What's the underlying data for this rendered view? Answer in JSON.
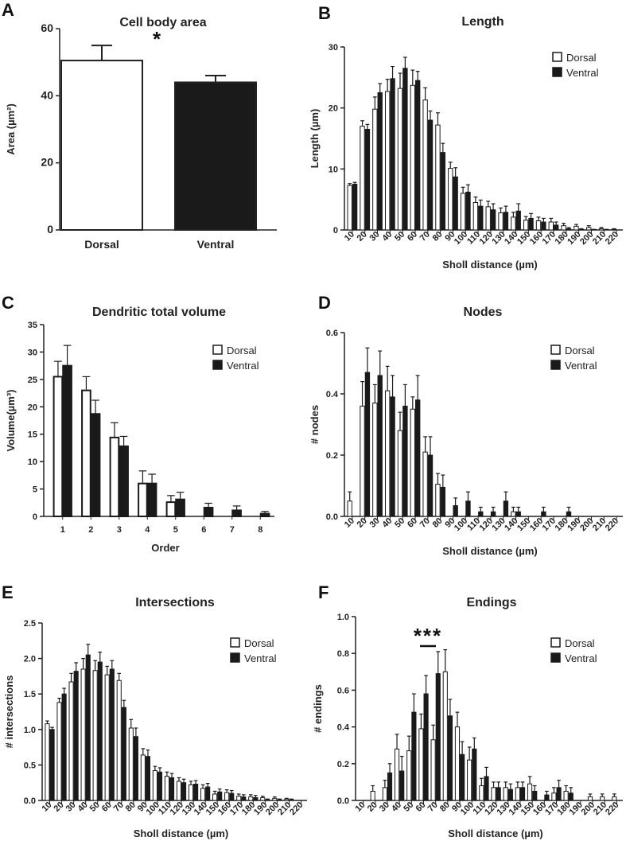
{
  "chart_data": [
    {
      "panel": "A",
      "type": "bar",
      "title": "Cell body area",
      "xlabel": "",
      "ylabel": "Area (µm²)",
      "ylim": [
        0,
        60
      ],
      "yticks": [
        "0",
        "20",
        "40",
        "60"
      ],
      "categories": [
        "Dorsal",
        "Ventral"
      ],
      "values": [
        50.5,
        44.0
      ],
      "errors": [
        4.5,
        2.0
      ],
      "annotation": "*",
      "colors": [
        "#ffffff",
        "#1a1a1a"
      ]
    },
    {
      "panel": "B",
      "type": "bar",
      "title": "Length",
      "xlabel": "Sholl distance (µm)",
      "ylabel": "Length (µm)",
      "ylim": [
        0,
        30
      ],
      "yticks": [
        "0",
        "10",
        "20",
        "30"
      ],
      "categories": [
        "10",
        "20",
        "30",
        "40",
        "50",
        "60",
        "70",
        "80",
        "90",
        "100",
        "110",
        "120",
        "130",
        "140",
        "150",
        "160",
        "170",
        "180",
        "190",
        "200",
        "210",
        "220"
      ],
      "legend": [
        "Dorsal",
        "Ventral"
      ],
      "series": [
        {
          "name": "Dorsal",
          "values": [
            7.3,
            17.0,
            19.8,
            22.7,
            23.2,
            23.7,
            21.3,
            17.2,
            10.1,
            6.0,
            4.5,
            3.8,
            2.8,
            2.1,
            1.6,
            1.5,
            1.3,
            0.7,
            0.6,
            0.4,
            0.2,
            0.1
          ],
          "errors": [
            0.3,
            0.9,
            2.0,
            2.0,
            2.5,
            2.5,
            2.0,
            2.0,
            1.0,
            1.0,
            0.9,
            0.9,
            0.8,
            0.8,
            0.6,
            0.6,
            0.6,
            0.4,
            0.3,
            0.3,
            0.2,
            0.1
          ]
        },
        {
          "name": "Ventral",
          "values": [
            7.5,
            16.5,
            22.5,
            24.8,
            26.5,
            24.5,
            18.0,
            12.7,
            8.7,
            6.2,
            3.9,
            3.3,
            2.9,
            3.1,
            1.9,
            1.3,
            0.8,
            0.2,
            0.1,
            0.05,
            0.05,
            0.0
          ],
          "errors": [
            0.3,
            0.8,
            1.5,
            2.0,
            1.8,
            1.5,
            1.5,
            1.5,
            1.5,
            1.2,
            1.0,
            1.0,
            1.0,
            1.2,
            0.8,
            0.6,
            0.5,
            0.2,
            0.1,
            0.05,
            0.05,
            0.0
          ]
        }
      ]
    },
    {
      "panel": "C",
      "type": "bar",
      "title": "Dendritic total volume",
      "xlabel": "Order",
      "ylabel": "Volume(µm³)",
      "ylim": [
        0,
        35
      ],
      "yticks": [
        "0",
        "5",
        "10",
        "15",
        "20",
        "25",
        "30",
        "35"
      ],
      "categories": [
        "1",
        "2",
        "3",
        "4",
        "5",
        "6",
        "7",
        "8"
      ],
      "legend": [
        "Dorsal",
        "Ventral"
      ],
      "series": [
        {
          "name": "Dorsal",
          "values": [
            25.5,
            23.0,
            14.4,
            6.0,
            2.6,
            0,
            0,
            0
          ],
          "errors": [
            2.8,
            2.5,
            2.7,
            2.3,
            1.2,
            0,
            0,
            0
          ]
        },
        {
          "name": "Ventral",
          "values": [
            27.5,
            18.7,
            12.8,
            6.0,
            3.1,
            1.6,
            1.1,
            0.5
          ],
          "errors": [
            3.7,
            2.5,
            1.8,
            1.7,
            1.3,
            0.8,
            0.8,
            0.4
          ]
        }
      ]
    },
    {
      "panel": "D",
      "type": "bar",
      "title": "Nodes",
      "xlabel": "Sholl distance (µm)",
      "ylabel": "# nodes",
      "ylim": [
        0,
        0.6
      ],
      "yticks": [
        "0.0",
        "0.2",
        "0.4",
        "0.6"
      ],
      "categories": [
        "10",
        "20",
        "30",
        "40",
        "50",
        "60",
        "70",
        "80",
        "90",
        "100",
        "110",
        "120",
        "130",
        "140",
        "150",
        "160",
        "170",
        "180",
        "190",
        "200",
        "210",
        "220"
      ],
      "legend": [
        "Dorsal",
        "Ventral"
      ],
      "series": [
        {
          "name": "Dorsal",
          "values": [
            0.05,
            0.36,
            0.37,
            0.41,
            0.28,
            0.35,
            0.21,
            0.105,
            0,
            0,
            0,
            0,
            0,
            0.015,
            0,
            0,
            0,
            0,
            0,
            0,
            0,
            0
          ],
          "errors": [
            0.03,
            0.08,
            0.06,
            0.08,
            0.06,
            0.04,
            0.05,
            0.035,
            0,
            0,
            0,
            0,
            0,
            0.015,
            0,
            0,
            0,
            0,
            0,
            0,
            0,
            0
          ]
        },
        {
          "name": "Ventral",
          "values": [
            0,
            0.47,
            0.46,
            0.39,
            0.36,
            0.38,
            0.2,
            0.095,
            0.035,
            0.05,
            0.015,
            0.015,
            0.05,
            0.015,
            0,
            0.015,
            0,
            0.015,
            0,
            0,
            0,
            0
          ],
          "errors": [
            0,
            0.08,
            0.08,
            0.07,
            0.07,
            0.08,
            0.06,
            0.04,
            0.025,
            0.03,
            0.015,
            0.015,
            0.03,
            0.015,
            0,
            0.015,
            0,
            0.015,
            0,
            0,
            0,
            0
          ]
        }
      ]
    },
    {
      "panel": "E",
      "type": "bar",
      "title": "Intersections",
      "xlabel": "Sholl distance (µm)",
      "ylabel": "# intersections",
      "ylim": [
        0,
        2.5
      ],
      "yticks": [
        "0.0",
        "0.5",
        "1.0",
        "1.5",
        "2.0",
        "2.5"
      ],
      "categories": [
        "10",
        "20",
        "30",
        "40",
        "50",
        "60",
        "70",
        "80",
        "90",
        "100",
        "110",
        "120",
        "130",
        "140",
        "150",
        "160",
        "170",
        "180",
        "190",
        "200",
        "210",
        "220"
      ],
      "legend": [
        "Dorsal",
        "Ventral"
      ],
      "series": [
        {
          "name": "Dorsal",
          "values": [
            1.08,
            1.38,
            1.67,
            1.85,
            1.83,
            1.77,
            1.69,
            1.02,
            0.64,
            0.42,
            0.34,
            0.27,
            0.22,
            0.17,
            0.09,
            0.11,
            0.06,
            0.05,
            0.04,
            0.03,
            0.02,
            0.0
          ],
          "errors": [
            0.04,
            0.06,
            0.12,
            0.15,
            0.14,
            0.12,
            0.1,
            0.12,
            0.09,
            0.06,
            0.06,
            0.05,
            0.05,
            0.05,
            0.04,
            0.04,
            0.03,
            0.03,
            0.02,
            0.02,
            0.01,
            0.0
          ]
        },
        {
          "name": "Ventral",
          "values": [
            1.0,
            1.5,
            1.82,
            2.05,
            1.95,
            1.85,
            1.31,
            0.9,
            0.62,
            0.4,
            0.32,
            0.25,
            0.23,
            0.19,
            0.12,
            0.1,
            0.05,
            0.04,
            0.01,
            0.01,
            0.01,
            0.0
          ],
          "errors": [
            0.03,
            0.08,
            0.12,
            0.15,
            0.14,
            0.12,
            0.1,
            0.12,
            0.09,
            0.06,
            0.06,
            0.05,
            0.05,
            0.05,
            0.04,
            0.04,
            0.03,
            0.03,
            0.01,
            0.01,
            0.01,
            0.0
          ]
        }
      ]
    },
    {
      "panel": "F",
      "type": "bar",
      "title": "Endings",
      "xlabel": "Sholl distance (µm)",
      "ylabel": "# endings",
      "ylim": [
        0,
        1.0
      ],
      "yticks": [
        "0.0",
        "0.2",
        "0.4",
        "0.6",
        "0.8",
        "1.0"
      ],
      "categories": [
        "10",
        "20",
        "30",
        "40",
        "50",
        "60",
        "70",
        "80",
        "90",
        "100",
        "110",
        "120",
        "130",
        "140",
        "150",
        "160",
        "170",
        "180",
        "190",
        "200",
        "210",
        "220"
      ],
      "legend": [
        "Dorsal",
        "Ventral"
      ],
      "annotation": "***",
      "series": [
        {
          "name": "Dorsal",
          "values": [
            0,
            0.05,
            0.07,
            0.28,
            0.27,
            0.39,
            0.33,
            0.7,
            0.4,
            0.22,
            0.08,
            0.07,
            0.07,
            0.07,
            0.09,
            0.0,
            0.04,
            0.05,
            0.0,
            0.02,
            0.02,
            0.02
          ],
          "errors": [
            0,
            0.03,
            0.04,
            0.08,
            0.08,
            0.08,
            0.08,
            0.12,
            0.08,
            0.07,
            0.04,
            0.03,
            0.03,
            0.03,
            0.04,
            0.0,
            0.03,
            0.03,
            0.0,
            0.015,
            0.015,
            0.015
          ]
        },
        {
          "name": "Ventral",
          "values": [
            0,
            0,
            0.15,
            0.16,
            0.48,
            0.58,
            0.69,
            0.46,
            0.25,
            0.28,
            0.13,
            0.07,
            0.06,
            0.07,
            0.05,
            0.03,
            0.07,
            0.04,
            0.0,
            0.0,
            0.0,
            0.0
          ],
          "errors": [
            0,
            0,
            0.05,
            0.08,
            0.1,
            0.1,
            0.12,
            0.09,
            0.07,
            0.06,
            0.05,
            0.03,
            0.03,
            0.03,
            0.03,
            0.02,
            0.04,
            0.03,
            0.0,
            0.0,
            0.0,
            0.0
          ]
        }
      ]
    }
  ]
}
